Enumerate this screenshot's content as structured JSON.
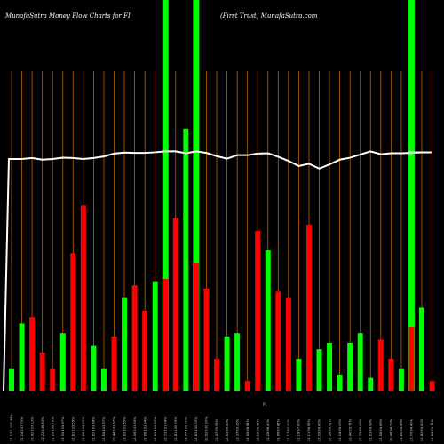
{
  "header": {
    "left": "MunafaSutra  Money Flow  Charts for FI",
    "right": "(First Trust) MunafaSutra.com"
  },
  "colors": {
    "background": "#000000",
    "grid": "#b8620a",
    "up": "#00ff00",
    "down": "#ff0000",
    "line": "#ffffff",
    "tick_text": "#cfcfcf"
  },
  "chart_data": {
    "type": "bar",
    "title": "MunafaSutra  Money Flow  Charts for FI",
    "subtitle": "(First Trust) MunafaSutra.com",
    "x_axis_mark": "F\\",
    "ylim": [
      0,
      100
    ],
    "grid": true,
    "categories": [
      "22.03.0 108.45%",
      "22.24 107.70%",
      "22.42 107.13%",
      "22.22 106.83%",
      "22.69 106.76%",
      "22.55 105.97%",
      "22.81 105.05%",
      "22.86 104.90%",
      "22.62 103.58%",
      "22.65 103.57%",
      "22.44 103.57%",
      "22.63 103.55%",
      "22.49 103.55%",
      "22.66 103.34%",
      "22.63 102.50%",
      "22.73 101.04%",
      "22.81 100.39%",
      "22.77 100.01%",
      "22.83 100.00%",
      "22.62 100.30%",
      "22.47 99.95%",
      "22.53 99.40%",
      "22.37 99.36%",
      "22.45 98.84%",
      "22.15 98.66%",
      "22.08 98.40%",
      "22.45 97.85%",
      "22.17 97.20%",
      "22.19 97.00%",
      "22.11 96.89%",
      "22.05 96.86%",
      "22.58 96.61%",
      "22.24 96.09%",
      "22.40 95.72%",
      "22.39 95.08%",
      "22.51 94.98%",
      "22.56 94.88%",
      "22.46 94.73%",
      "22.60 94.46%",
      "22.70 94.43%",
      "22.82 94.40%",
      "22.84 93.73%"
    ],
    "series": [
      {
        "role": "money-flow-bars",
        "values": [
          7,
          21,
          23,
          12,
          7,
          18,
          43,
          58,
          14,
          7,
          17,
          29,
          33,
          25,
          34,
          35,
          54,
          82,
          40,
          32,
          10,
          17,
          18,
          3,
          50,
          44,
          31,
          29,
          10,
          52,
          13,
          15,
          5,
          15,
          18,
          4,
          16,
          10,
          7,
          20,
          26,
          3
        ],
        "colors": [
          "up",
          "up",
          "down",
          "down",
          "down",
          "up",
          "down",
          "down",
          "up",
          "up",
          "down",
          "up",
          "down",
          "down",
          "up",
          "down",
          "down",
          "up",
          "down",
          "down",
          "down",
          "up",
          "up",
          "down",
          "down",
          "up",
          "down",
          "down",
          "up",
          "down",
          "up",
          "up",
          "up",
          "up",
          "up",
          "up",
          "down",
          "down",
          "up",
          "down",
          "up",
          "down"
        ],
        "full_height_markers": [
          15,
          18,
          39
        ]
      },
      {
        "role": "price-line",
        "values": [
          72.5,
          72.5,
          72.8,
          72.3,
          72.5,
          72.9,
          72.8,
          72.5,
          72.8,
          73.3,
          74.2,
          74.5,
          74.4,
          74.4,
          74.6,
          74.9,
          74.9,
          74.3,
          74.9,
          74.4,
          73.4,
          72.6,
          73.7,
          73.7,
          74.2,
          74.3,
          73.2,
          71.9,
          70.3,
          71.0,
          69.5,
          70.8,
          72.3,
          72.9,
          73.9,
          74.9,
          74.0,
          74.3,
          74.3,
          74.4,
          74.6,
          74.6
        ],
        "start_value": 0
      }
    ]
  }
}
